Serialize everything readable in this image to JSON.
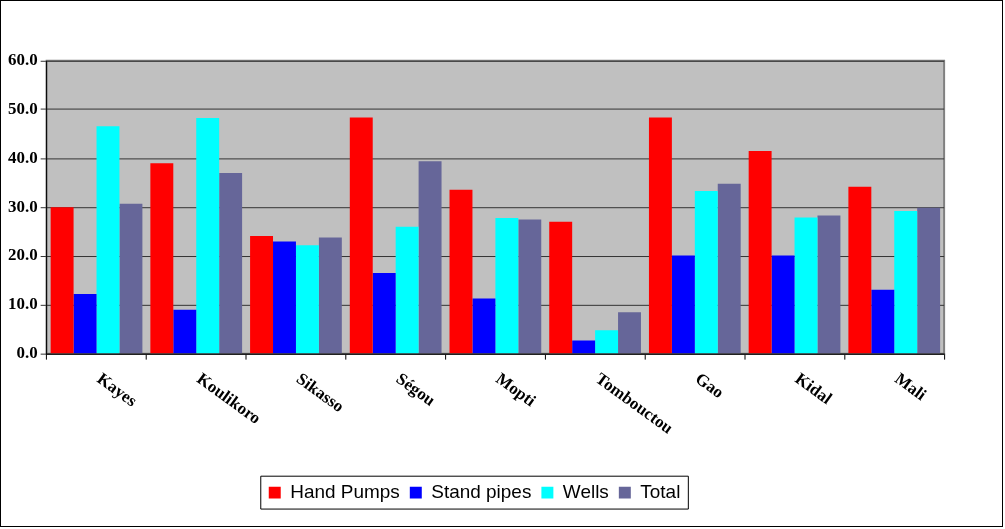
{
  "chart_data": {
    "type": "bar",
    "categories": [
      "Kayes",
      "Koulikoro",
      "Sikasso",
      "Ségou",
      "Mopti",
      "Tombouctou",
      "Gao",
      "Kidal",
      "Mali"
    ],
    "series": [
      {
        "name": "Hand Pumps",
        "color": "#ff0000",
        "values": [
          30.0,
          39.0,
          24.1,
          48.4,
          33.6,
          27.0,
          48.4,
          41.5,
          34.2
        ]
      },
      {
        "name": "Stand pipes",
        "color": "#0000ff",
        "values": [
          12.2,
          9.0,
          23.0,
          16.5,
          11.3,
          2.7,
          20.1,
          20.1,
          13.1
        ]
      },
      {
        "name": "Wells",
        "color": "#00ffff",
        "values": [
          46.6,
          48.3,
          22.2,
          26.0,
          27.8,
          4.8,
          33.3,
          27.9,
          29.2
        ]
      },
      {
        "name": "Total",
        "color": "#666699",
        "values": [
          30.7,
          37.0,
          23.8,
          39.4,
          27.5,
          8.5,
          34.8,
          28.3,
          29.9
        ]
      }
    ],
    "ylim": [
      0,
      60
    ],
    "yticks": [
      {
        "value": 0,
        "label": "0.0"
      },
      {
        "value": 10,
        "label": "10.0"
      },
      {
        "value": 20,
        "label": "20.0"
      },
      {
        "value": 30,
        "label": "30.0"
      },
      {
        "value": 40,
        "label": "40.0"
      },
      {
        "value": 50,
        "label": "50.0"
      },
      {
        "value": 60,
        "label": "60.0"
      }
    ],
    "grid": "y",
    "legend": "bottom"
  }
}
